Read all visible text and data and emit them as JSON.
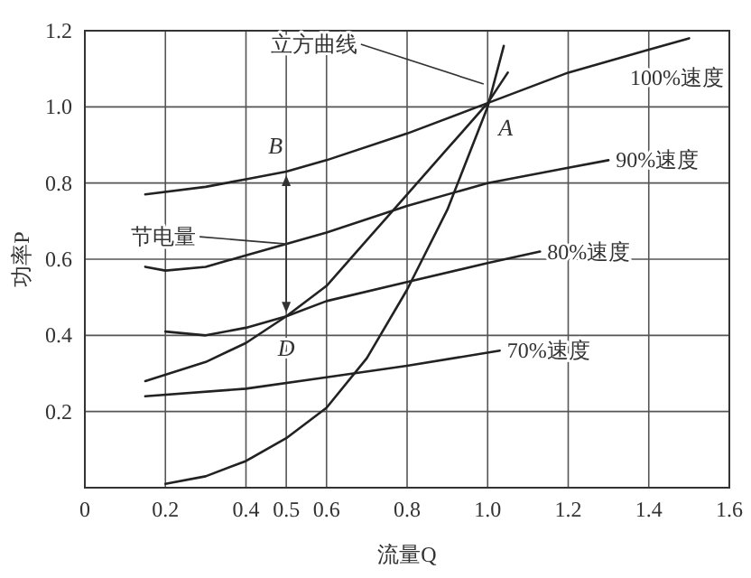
{
  "chart_data": {
    "type": "line",
    "xlabel": "流量Q",
    "ylabel": "功率P",
    "xlim": [
      0,
      1.6
    ],
    "ylim": [
      0,
      1.2
    ],
    "xticks": [
      0,
      0.2,
      0.4,
      0.5,
      0.6,
      0.8,
      {
        "value": 1,
        "label": "1.0"
      },
      1.2,
      1.4,
      1.6
    ],
    "yticks": [
      0.2,
      0.4,
      0.6,
      0.8,
      {
        "value": 1,
        "label": "1.0"
      },
      1.2
    ],
    "grid": true,
    "marker": "none",
    "line_style": "solid",
    "series": [
      {
        "name": "100%速度",
        "color": "#222222",
        "x": [
          0.15,
          0.3,
          0.4,
          0.5,
          0.6,
          0.8,
          1.0,
          1.2,
          1.4,
          1.5
        ],
        "values": [
          0.77,
          0.79,
          0.81,
          0.83,
          0.86,
          0.93,
          1.01,
          1.09,
          1.15,
          1.18
        ]
      },
      {
        "name": "90%速度",
        "color": "#222222",
        "x": [
          0.15,
          0.2,
          0.3,
          0.4,
          0.6,
          0.8,
          1.0,
          1.2,
          1.3
        ],
        "values": [
          0.58,
          0.57,
          0.58,
          0.61,
          0.67,
          0.74,
          0.8,
          0.84,
          0.86
        ]
      },
      {
        "name": "80%速度",
        "color": "#222222",
        "x": [
          0.2,
          0.3,
          0.4,
          0.5,
          0.6,
          0.8,
          1.0,
          1.13
        ],
        "values": [
          0.41,
          0.4,
          0.42,
          0.45,
          0.49,
          0.54,
          0.59,
          0.62
        ]
      },
      {
        "name": "70%速度",
        "color": "#222222",
        "x": [
          0.15,
          0.4,
          0.6,
          0.8,
          1.03
        ],
        "values": [
          0.24,
          0.26,
          0.29,
          0.32,
          0.36
        ]
      },
      {
        "color": "#222222",
        "x": [
          0.15,
          0.3,
          0.4,
          0.5,
          0.6,
          0.7,
          0.8,
          0.9,
          1.0,
          1.05
        ],
        "values": [
          0.28,
          0.33,
          0.38,
          0.45,
          0.53,
          0.65,
          0.77,
          0.89,
          1.01,
          1.09
        ]
      },
      {
        "color": "#222222",
        "x": [
          0.2,
          0.3,
          0.4,
          0.5,
          0.6,
          0.7,
          0.8,
          0.9,
          1.0,
          1.04
        ],
        "values": [
          0.01,
          0.03,
          0.07,
          0.13,
          0.21,
          0.34,
          0.52,
          0.73,
          1.0,
          1.16
        ]
      }
    ],
    "annotations": [
      {
        "text": "立方曲线",
        "x": 0.99,
        "y": 1.06
      },
      {
        "text": "节电量",
        "x": 0.5,
        "y": 0.64
      },
      {
        "text": "A",
        "x": 1.0,
        "y": 1.0
      },
      {
        "text": "B",
        "x": 0.5,
        "y": 0.83
      },
      {
        "text": "D",
        "x": 0.5,
        "y": 0.45
      }
    ]
  }
}
